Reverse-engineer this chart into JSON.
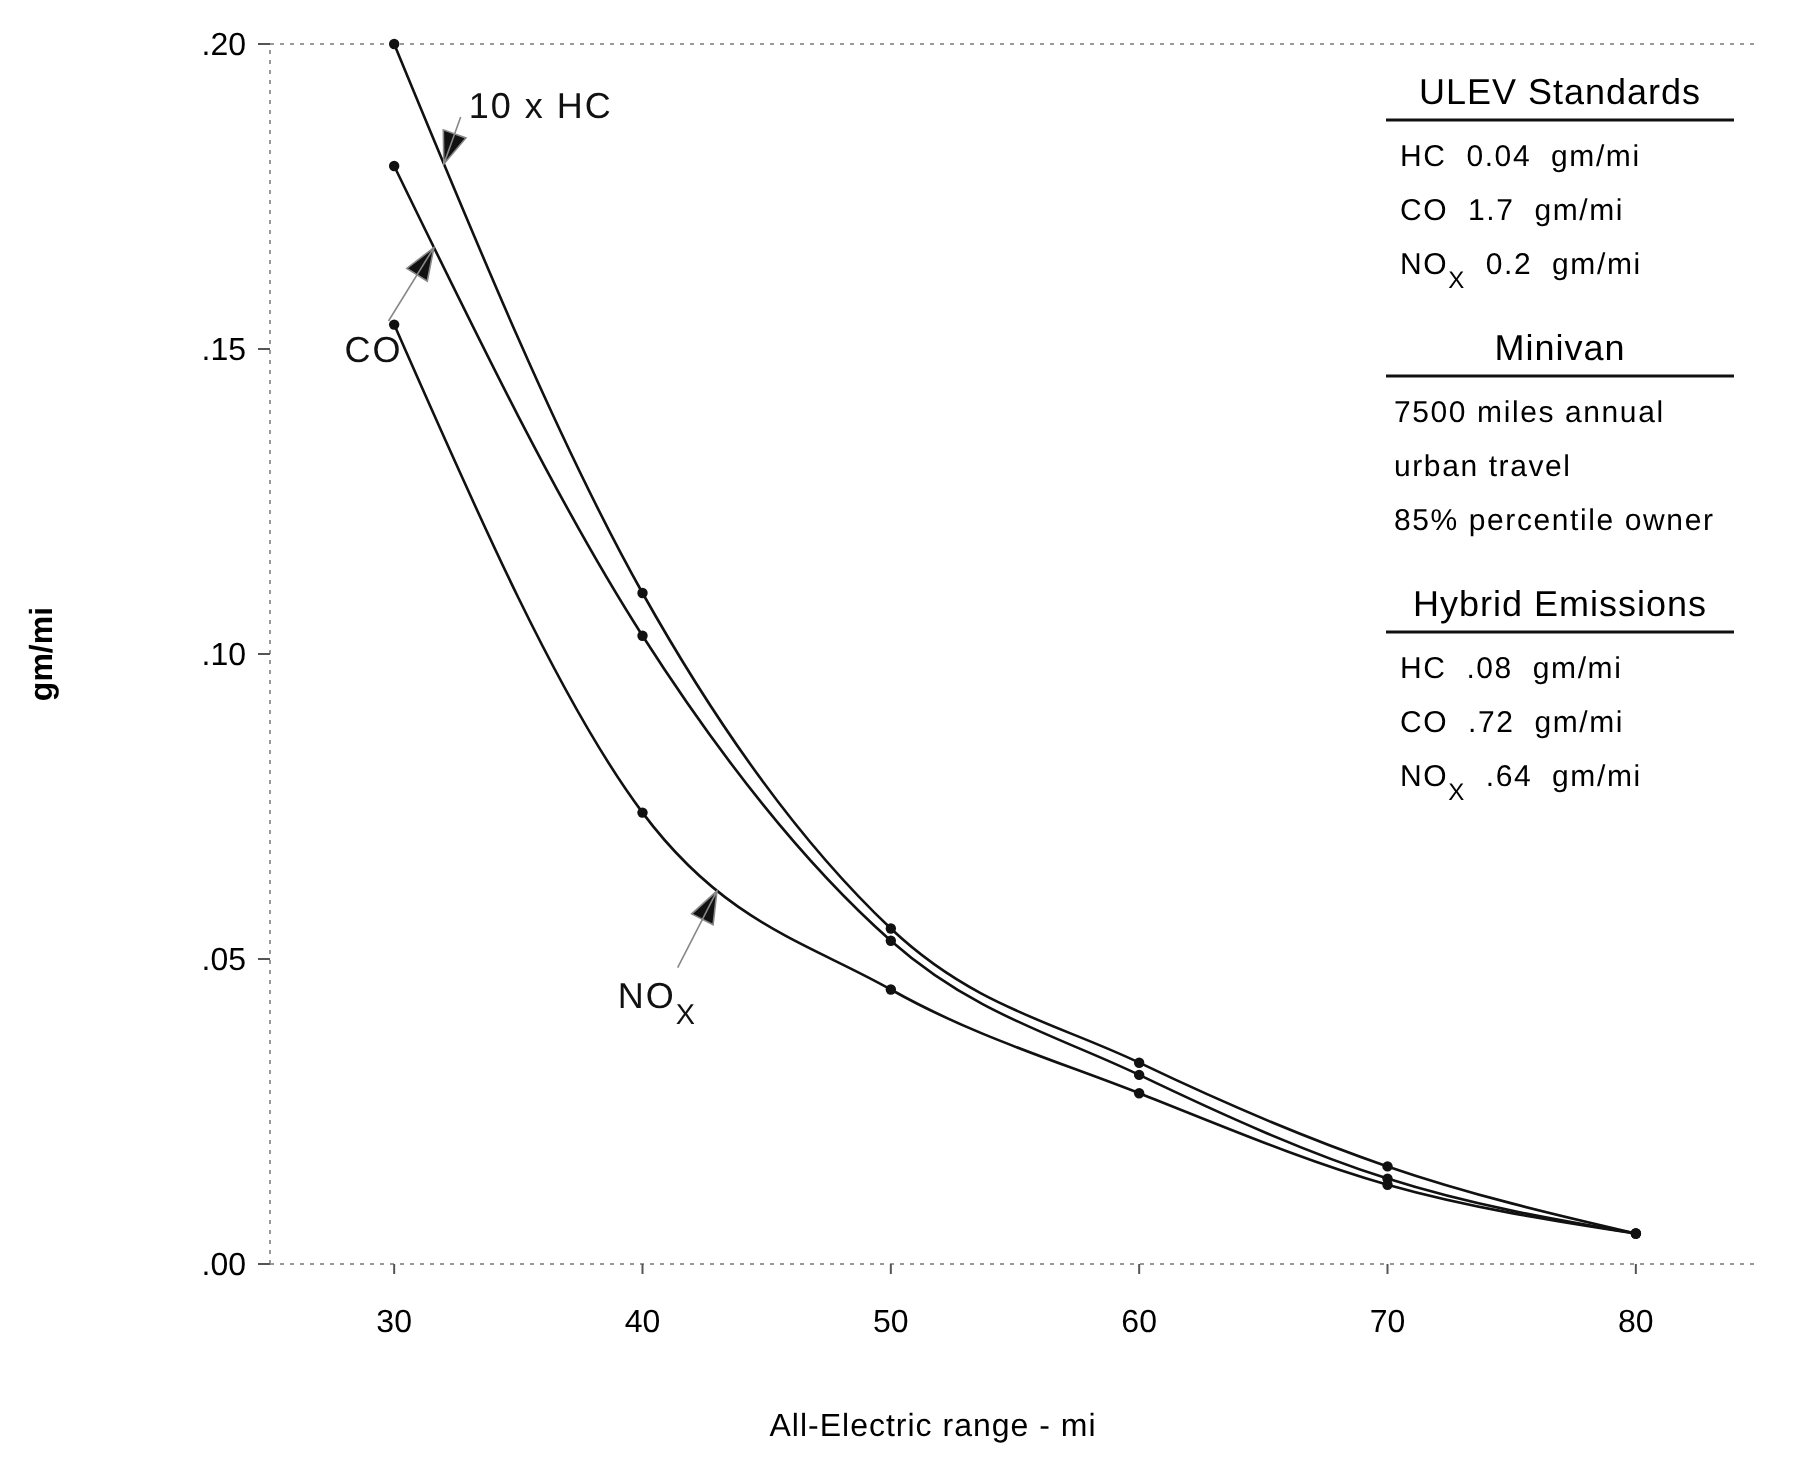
{
  "chart_data": {
    "type": "line",
    "xlabel": "All-Electric range - mi",
    "ylabel": "gm/mi",
    "x": [
      30,
      40,
      50,
      60,
      70,
      80
    ],
    "series": [
      {
        "name": "10 x HC",
        "color": "#111111",
        "values": [
          0.2,
          0.11,
          0.055,
          0.033,
          0.016,
          0.005
        ]
      },
      {
        "name": "CO",
        "color": "#111111",
        "values": [
          0.18,
          0.103,
          0.053,
          0.031,
          0.014,
          0.005
        ]
      },
      {
        "name": "NO$_{X}$",
        "color": "#111111",
        "values": [
          0.154,
          0.074,
          0.045,
          0.028,
          0.013,
          0.005
        ]
      }
    ],
    "xlim": [
      25,
      85
    ],
    "xticks": [
      30,
      40,
      50,
      60,
      70,
      80
    ],
    "ylim": [
      0,
      0.2
    ],
    "yticks": [
      {
        "value": 0,
        "label": ".00"
      },
      {
        "value": 0.05,
        "label": ".05"
      },
      {
        "value": 0.1,
        "label": ".10"
      },
      {
        "value": 0.15,
        "label": ".15"
      },
      {
        "value": 0.2,
        "label": ".20"
      }
    ],
    "marker": "circle",
    "line_style": "solid",
    "grid": false,
    "annotations": [
      "ULEV Standards",
      "HC  0.04  gm/mi",
      "CO  1.7  gm/mi",
      "NO$_{X}$  0.2  gm/mi",
      "Minivan",
      "7500 miles annual",
      "urban travel",
      "85% percentile owner",
      "Hybrid Emissions",
      "HC  .08  gm/mi",
      "CO  .72  gm/mi",
      "NO$_{X}$  .64  gm/mi"
    ]
  }
}
